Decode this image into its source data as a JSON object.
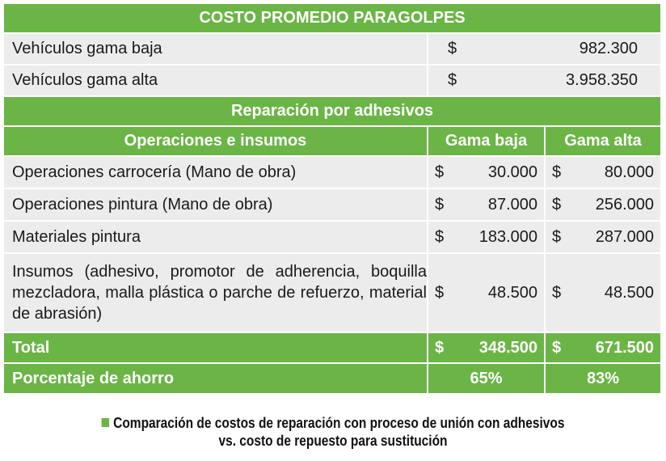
{
  "title": "COSTO PROMEDIO PARAGOLPES",
  "price_rows": [
    {
      "label": "Vehículos gama baja",
      "currency": "$",
      "value": "982.300"
    },
    {
      "label": "Vehículos gama alta",
      "currency": "$",
      "value": "3.958.350"
    }
  ],
  "section_title": "Reparación por adhesivos",
  "header": {
    "col1": "Operaciones e insumos",
    "col2": "Gama baja",
    "col3": "Gama alta"
  },
  "ops": [
    {
      "label": "Operaciones carrocería (Mano de obra)",
      "baja": "30.000",
      "alta": "80.000"
    },
    {
      "label": "Operaciones pintura (Mano de obra)",
      "baja": "87.000",
      "alta": "256.000"
    },
    {
      "label": "Materiales pintura",
      "baja": "183.000",
      "alta": "287.000"
    },
    {
      "label": "Insumos (adhesivo, promotor de adherencia, boquilla mezcladora, malla plástica o parche de refuerzo, material de abrasión)",
      "baja": "48.500",
      "alta": "48.500"
    }
  ],
  "currency": "$",
  "total": {
    "label": "Total",
    "baja": "348.500",
    "alta": "671.500"
  },
  "ahorro": {
    "label": "Porcentaje de ahorro",
    "baja": "65%",
    "alta": "83%"
  },
  "caption": {
    "line1": "Comparación de costos de reparación con proceso de unión con adhesivos",
    "line2": "vs. costo de repuesto para sustitución"
  },
  "colors": {
    "accent_green": "#6ab545",
    "row_grey": "#ececec"
  }
}
